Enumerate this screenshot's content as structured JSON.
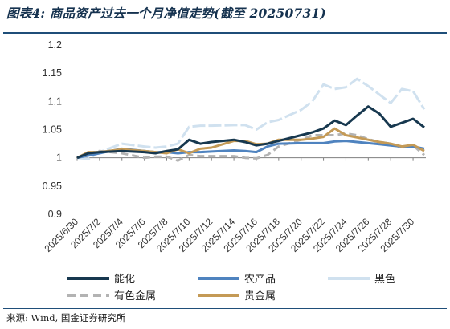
{
  "title": "图表4: 商品资产过去一个月净值走势(截至 20250731)",
  "source": "来源: Wind, 国金证券研究所",
  "chart_data": {
    "type": "line",
    "x": [
      "2025/6/30",
      "2025/7/1",
      "2025/7/2",
      "2025/7/3",
      "2025/7/4",
      "2025/7/5",
      "2025/7/6",
      "2025/7/7",
      "2025/7/8",
      "2025/7/9",
      "2025/7/10",
      "2025/7/11",
      "2025/7/12",
      "2025/7/13",
      "2025/7/14",
      "2025/7/15",
      "2025/7/16",
      "2025/7/17",
      "2025/7/18",
      "2025/7/19",
      "2025/7/20",
      "2025/7/21",
      "2025/7/22",
      "2025/7/23",
      "2025/7/24",
      "2025/7/25",
      "2025/7/26",
      "2025/7/27",
      "2025/7/28",
      "2025/7/29",
      "2025/7/30",
      "2025/7/31"
    ],
    "tick_labels": [
      "2025/6/30",
      "2025/7/2",
      "2025/7/4",
      "2025/7/6",
      "2025/7/8",
      "2025/7/10",
      "2025/7/12",
      "2025/7/14",
      "2025/7/16",
      "2025/7/18",
      "2025/7/20",
      "2025/7/22",
      "2025/7/24",
      "2025/7/26",
      "2025/7/28",
      "2025/7/30"
    ],
    "ylim": [
      0.9,
      1.2
    ],
    "yticks": [
      "0.9",
      "0.95",
      "1",
      "1.05",
      "1.1",
      "1.15",
      "1.2"
    ],
    "grid": false,
    "legend_position": "bottom",
    "series": [
      {
        "name": "能化",
        "color": "#17384f",
        "dash": "solid",
        "values": [
          1.0,
          1.008,
          1.01,
          null,
          1.012,
          null,
          1.01,
          1.008,
          1.012,
          1.015,
          1.032,
          1.025,
          1.028,
          null,
          1.032,
          1.028,
          1.022,
          1.025,
          1.03,
          null,
          1.04,
          1.045,
          1.052,
          1.066,
          1.058,
          1.075,
          1.091,
          1.078,
          1.055,
          1.062,
          1.069,
          1.054
        ]
      },
      {
        "name": "农产品",
        "color": "#4f83bf",
        "dash": "solid",
        "values": [
          1.0,
          1.004,
          1.008,
          null,
          1.016,
          null,
          1.012,
          1.01,
          1.01,
          1.008,
          1.01,
          1.01,
          1.011,
          null,
          1.013,
          1.012,
          1.01,
          1.02,
          1.025,
          null,
          1.026,
          1.026,
          1.026,
          1.029,
          1.03,
          1.028,
          1.026,
          1.024,
          1.022,
          1.02,
          1.02,
          1.016
        ]
      },
      {
        "name": "黑色",
        "color": "#d0e1ef",
        "dash": "solid",
        "values": [
          1.0,
          0.998,
          1.01,
          null,
          1.025,
          null,
          1.02,
          1.018,
          1.02,
          1.025,
          1.055,
          1.057,
          1.057,
          null,
          1.058,
          1.058,
          1.05,
          1.063,
          1.067,
          null,
          1.085,
          1.1,
          1.13,
          1.122,
          1.125,
          1.14,
          1.127,
          1.112,
          1.097,
          1.122,
          1.118,
          1.086
        ]
      },
      {
        "name": "有色金属",
        "color": "#b3b3b3",
        "dash": "dash",
        "values": [
          1.0,
          1.008,
          1.012,
          null,
          1.008,
          null,
          1.0,
          1.002,
          1.002,
          0.995,
          1.005,
          1.003,
          1.003,
          null,
          1.003,
          1.0,
          0.999,
          1.005,
          1.02,
          null,
          1.032,
          1.04,
          1.04,
          1.04,
          1.043,
          1.04,
          1.033,
          1.028,
          1.025,
          1.018,
          1.022,
          1.005
        ]
      },
      {
        "name": "贵金属",
        "color": "#c49a56",
        "dash": "solid",
        "values": [
          1.0,
          1.01,
          1.01,
          null,
          1.015,
          null,
          1.012,
          1.01,
          1.008,
          1.015,
          1.008,
          1.016,
          1.018,
          null,
          1.03,
          1.03,
          1.024,
          1.025,
          1.032,
          null,
          1.032,
          1.034,
          1.037,
          1.052,
          1.04,
          1.036,
          1.032,
          1.028,
          1.025,
          1.02,
          1.023,
          1.012
        ]
      }
    ]
  }
}
